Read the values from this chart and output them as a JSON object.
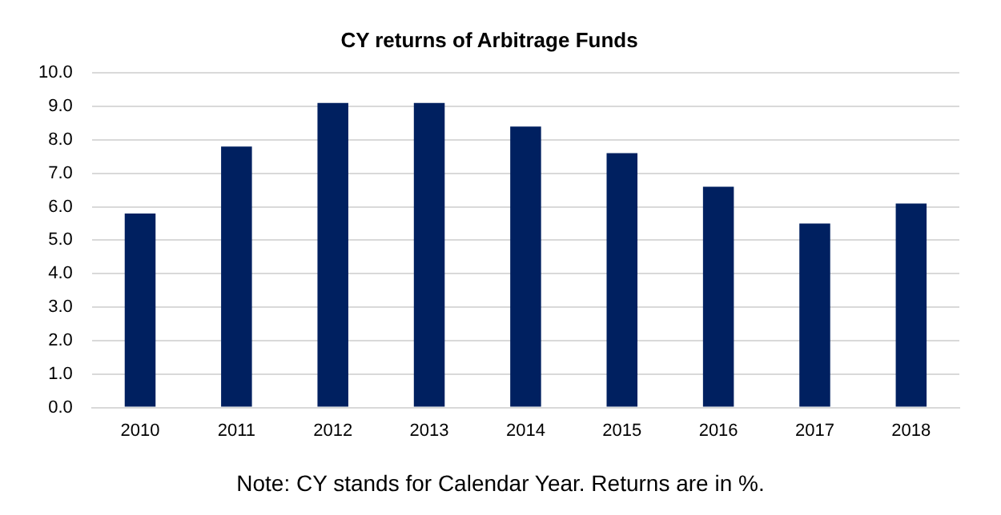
{
  "chart_data": {
    "type": "bar",
    "title": "CY returns of Arbitrage Funds",
    "categories": [
      "2010",
      "2011",
      "2012",
      "2013",
      "2014",
      "2015",
      "2016",
      "2017",
      "2018"
    ],
    "values": [
      5.8,
      7.8,
      9.1,
      9.1,
      8.4,
      7.6,
      6.6,
      5.5,
      6.1
    ],
    "color": "#002060",
    "ylim": [
      0,
      10
    ],
    "yticks": [
      {
        "value": 0,
        "label": "0.0"
      },
      {
        "value": 1,
        "label": "1.0"
      },
      {
        "value": 2,
        "label": "2.0"
      },
      {
        "value": 3,
        "label": "3.0"
      },
      {
        "value": 4,
        "label": "4.0"
      },
      {
        "value": 5,
        "label": "5.0"
      },
      {
        "value": 6,
        "label": "6.0"
      },
      {
        "value": 7,
        "label": "7.0"
      },
      {
        "value": 8,
        "label": "8.0"
      },
      {
        "value": 9,
        "label": "9.0"
      },
      {
        "value": 10,
        "label": "10.0"
      }
    ],
    "grid": "y",
    "annotations": [
      "Note: CY stands for Calendar Year. Returns are in %."
    ]
  }
}
